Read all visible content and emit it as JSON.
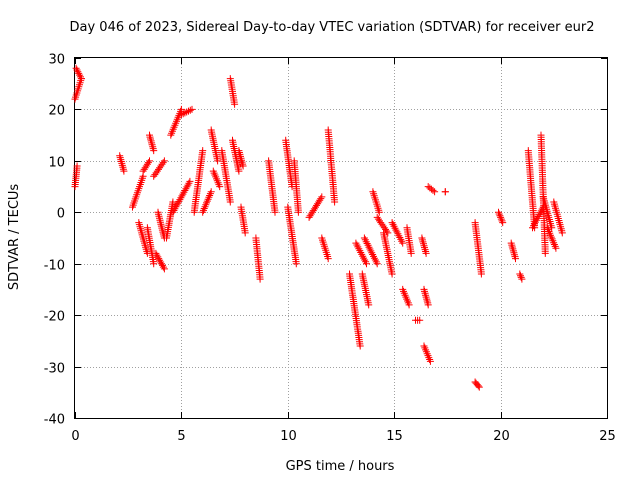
{
  "chart_data": {
    "type": "scatter",
    "title": "Day 046 of 2023, Sidereal Day-to-day VTEC variation (SDTVAR) for receiver eur2",
    "xlabel": "GPS time / hours",
    "ylabel": "SDTVAR / TECUs",
    "xlim": [
      0,
      25
    ],
    "ylim": [
      -40,
      30
    ],
    "xticks": [
      0,
      5,
      10,
      15,
      20,
      25
    ],
    "yticks": [
      -40,
      -30,
      -20,
      -10,
      0,
      10,
      20,
      30
    ],
    "grid": true,
    "marker": "+",
    "color": "#ff0000",
    "series": [
      {
        "name": "SDTVAR",
        "segments": [
          {
            "x": [
              0.0,
              0.3
            ],
            "y": [
              22,
              26
            ]
          },
          {
            "x": [
              0.05,
              0.3
            ],
            "y": [
              28,
              26
            ]
          },
          {
            "x": [
              0.0,
              0.1
            ],
            "y": [
              5,
              9
            ]
          },
          {
            "x": [
              2.1,
              2.3
            ],
            "y": [
              11,
              8
            ]
          },
          {
            "x": [
              2.7,
              3.2
            ],
            "y": [
              1,
              7
            ]
          },
          {
            "x": [
              3.0,
              3.4
            ],
            "y": [
              -2,
              -8
            ]
          },
          {
            "x": [
              3.2,
              3.5
            ],
            "y": [
              8,
              10
            ]
          },
          {
            "x": [
              3.4,
              3.7
            ],
            "y": [
              -3,
              -10
            ]
          },
          {
            "x": [
              3.5,
              3.7
            ],
            "y": [
              15,
              12
            ]
          },
          {
            "x": [
              3.7,
              4.2
            ],
            "y": [
              7,
              10
            ]
          },
          {
            "x": [
              3.8,
              4.2
            ],
            "y": [
              -8,
              -11
            ]
          },
          {
            "x": [
              3.9,
              4.2
            ],
            "y": [
              0,
              -5
            ]
          },
          {
            "x": [
              4.3,
              4.6
            ],
            "y": [
              -5,
              2
            ]
          },
          {
            "x": [
              4.5,
              5.0
            ],
            "y": [
              15,
              20
            ]
          },
          {
            "x": [
              4.6,
              5.4
            ],
            "y": [
              0,
              6
            ]
          },
          {
            "x": [
              5.0,
              5.5
            ],
            "y": [
              19,
              20
            ]
          },
          {
            "x": [
              5.6,
              6.0
            ],
            "y": [
              0,
              12
            ]
          },
          {
            "x": [
              6.0,
              6.4
            ],
            "y": [
              0,
              4
            ]
          },
          {
            "x": [
              6.4,
              6.7
            ],
            "y": [
              16,
              10
            ]
          },
          {
            "x": [
              6.5,
              6.8
            ],
            "y": [
              8,
              5
            ]
          },
          {
            "x": [
              6.9,
              7.3
            ],
            "y": [
              12,
              2
            ]
          },
          {
            "x": [
              7.3,
              7.5
            ],
            "y": [
              26,
              21
            ]
          },
          {
            "x": [
              7.4,
              7.7
            ],
            "y": [
              14,
              8
            ]
          },
          {
            "x": [
              7.7,
              7.9
            ],
            "y": [
              12,
              9
            ]
          },
          {
            "x": [
              7.8,
              8.0
            ],
            "y": [
              1,
              -4
            ]
          },
          {
            "x": [
              8.5,
              8.7
            ],
            "y": [
              -5,
              -13
            ]
          },
          {
            "x": [
              9.1,
              9.4
            ],
            "y": [
              10,
              0
            ]
          },
          {
            "x": [
              9.9,
              10.2
            ],
            "y": [
              14,
              5
            ]
          },
          {
            "x": [
              10.0,
              10.4
            ],
            "y": [
              1,
              -10
            ]
          },
          {
            "x": [
              10.3,
              10.5
            ],
            "y": [
              10,
              0
            ]
          },
          {
            "x": [
              11.0,
              11.6
            ],
            "y": [
              -1,
              3
            ]
          },
          {
            "x": [
              11.6,
              11.9
            ],
            "y": [
              -5,
              -9
            ]
          },
          {
            "x": [
              11.9,
              12.2
            ],
            "y": [
              16,
              2
            ]
          },
          {
            "x": [
              12.9,
              13.4
            ],
            "y": [
              -12,
              -26
            ]
          },
          {
            "x": [
              13.2,
              13.7
            ],
            "y": [
              -6,
              -10
            ]
          },
          {
            "x": [
              13.5,
              13.8
            ],
            "y": [
              -12,
              -18
            ]
          },
          {
            "x": [
              13.6,
              14.2
            ],
            "y": [
              -5,
              -10
            ]
          },
          {
            "x": [
              14.0,
              14.3
            ],
            "y": [
              4,
              0
            ]
          },
          {
            "x": [
              14.2,
              14.7
            ],
            "y": [
              -1,
              -4
            ]
          },
          {
            "x": [
              14.5,
              14.9
            ],
            "y": [
              -4,
              -12
            ]
          },
          {
            "x": [
              14.9,
              15.4
            ],
            "y": [
              -2,
              -6
            ]
          },
          {
            "x": [
              15.4,
              15.7
            ],
            "y": [
              -15,
              -18
            ]
          },
          {
            "x": [
              15.6,
              15.8
            ],
            "y": [
              -3,
              -8
            ]
          },
          {
            "x": [
              16.0,
              16.2
            ],
            "y": [
              -21,
              -21
            ]
          },
          {
            "x": [
              16.3,
              16.5
            ],
            "y": [
              -5,
              -8
            ]
          },
          {
            "x": [
              16.4,
              16.6
            ],
            "y": [
              -15,
              -18
            ]
          },
          {
            "x": [
              16.4,
              16.7
            ],
            "y": [
              -26,
              -29
            ]
          },
          {
            "x": [
              16.6,
              16.9
            ],
            "y": [
              5,
              4
            ]
          },
          {
            "x": [
              17.4,
              17.4
            ],
            "y": [
              4,
              4
            ]
          },
          {
            "x": [
              18.8,
              19.0
            ],
            "y": [
              -33,
              -34
            ]
          },
          {
            "x": [
              18.8,
              19.1
            ],
            "y": [
              -2,
              -12
            ]
          },
          {
            "x": [
              19.9,
              20.1
            ],
            "y": [
              0,
              -2
            ]
          },
          {
            "x": [
              20.5,
              20.7
            ],
            "y": [
              -6,
              -9
            ]
          },
          {
            "x": [
              20.9,
              21.0
            ],
            "y": [
              -12,
              -13
            ]
          },
          {
            "x": [
              21.3,
              21.6
            ],
            "y": [
              12,
              -3
            ]
          },
          {
            "x": [
              21.5,
              22.0
            ],
            "y": [
              -3,
              1
            ]
          },
          {
            "x": [
              21.9,
              22.1
            ],
            "y": [
              15,
              -8
            ]
          },
          {
            "x": [
              22.0,
              22.4
            ],
            "y": [
              3,
              -3
            ]
          },
          {
            "x": [
              22.2,
              22.6
            ],
            "y": [
              -3,
              -7
            ]
          },
          {
            "x": [
              22.5,
              22.9
            ],
            "y": [
              2,
              -4
            ]
          }
        ]
      }
    ]
  }
}
